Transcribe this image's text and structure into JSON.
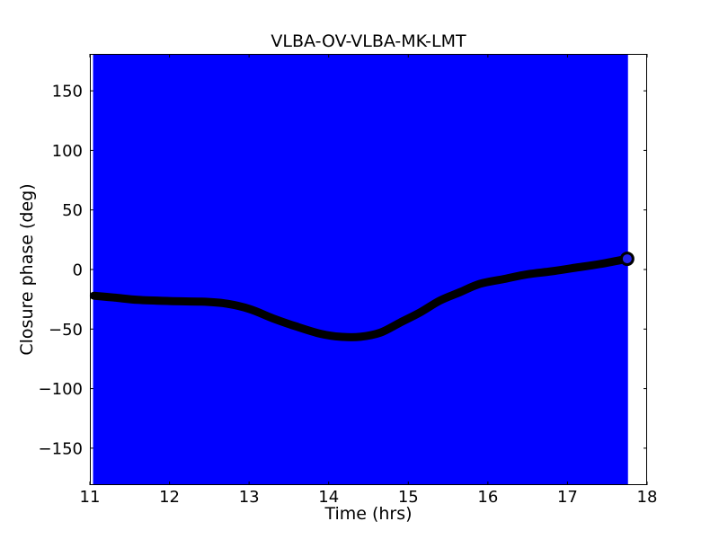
{
  "figure": {
    "background_color": "#ffffff"
  },
  "chart_data": {
    "type": "line",
    "title": "VLBA-OV-VLBA-MK-LMT",
    "xlabel": "Time (hrs)",
    "ylabel": "Closure phase (deg)",
    "xlim": [
      11,
      18
    ],
    "ylim": [
      -181,
      181
    ],
    "xticks": [
      11,
      12,
      13,
      14,
      15,
      16,
      17,
      18
    ],
    "yticks": [
      -150,
      -100,
      -50,
      0,
      50,
      100,
      150
    ],
    "grid": false,
    "legend": null,
    "colors": {
      "error_region": "#0000ff",
      "curve": "#000000",
      "axes": "#000000",
      "end_marker_inner": "#2222ee"
    },
    "error_region": {
      "x_start": 11.04,
      "x_end": 17.76,
      "spans_full_y_range": true,
      "color": "#0000ff"
    },
    "series": [
      {
        "name": "closure phase VLBA-OV-VLBA-MK-LMT",
        "color": "#000000",
        "style": "dense round markers forming thick curve",
        "points": [
          [
            11.05,
            -22
          ],
          [
            11.3,
            -23.5
          ],
          [
            11.6,
            -25.5
          ],
          [
            12.0,
            -26.5
          ],
          [
            12.4,
            -27
          ],
          [
            12.7,
            -28.5
          ],
          [
            13.0,
            -33
          ],
          [
            13.3,
            -41
          ],
          [
            13.6,
            -48
          ],
          [
            13.9,
            -54
          ],
          [
            14.15,
            -56.5
          ],
          [
            14.4,
            -56.5
          ],
          [
            14.65,
            -53
          ],
          [
            14.9,
            -44.5
          ],
          [
            15.15,
            -36
          ],
          [
            15.4,
            -26
          ],
          [
            15.65,
            -19
          ],
          [
            15.9,
            -12
          ],
          [
            16.2,
            -8
          ],
          [
            16.5,
            -4
          ],
          [
            16.8,
            -1.5
          ],
          [
            17.1,
            1.5
          ],
          [
            17.4,
            4.5
          ],
          [
            17.75,
            9
          ]
        ]
      }
    ],
    "end_marker": {
      "x": 17.75,
      "y": 9
    }
  }
}
